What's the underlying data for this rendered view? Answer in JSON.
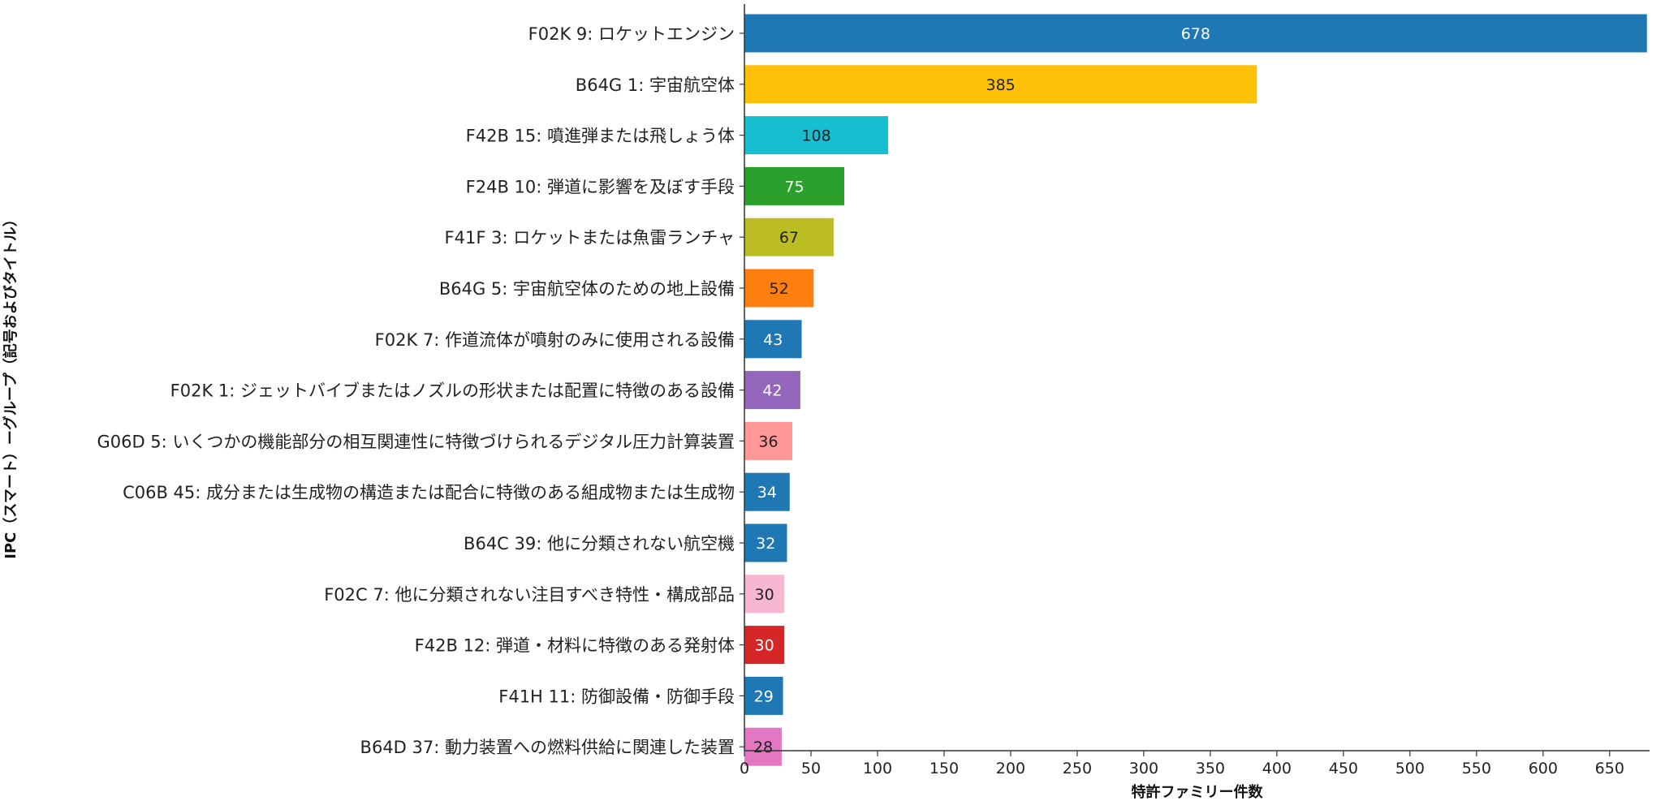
{
  "chart_data": {
    "type": "bar",
    "orientation": "horizontal",
    "xlabel": "特許ファミリー件数",
    "ylabel": "IPC（スマート）ーグループ（記号およびタイトル）",
    "xlim": [
      0,
      680
    ],
    "xticks": [
      0,
      50,
      100,
      150,
      200,
      250,
      300,
      350,
      400,
      450,
      500,
      550,
      600,
      650
    ],
    "categories": [
      "F02K 9: ロケットエンジン",
      "B64G 1: 宇宙航空体",
      "F42B 15: 噴進弾または飛しょう体",
      "F24B 10: 弾道に影響を及ぼす手段",
      "F41F 3: ロケットまたは魚雷ランチャ",
      "B64G 5: 宇宙航空体のための地上設備",
      "F02K 7: 作道流体が噴射のみに使用される設備",
      "F02K 1: ジェットバイブまたはノズルの形状または配置に特徴のある設備",
      "G06D 5: いくつかの機能部分の相互関連性に特徴づけられるデジタル圧力計算装置",
      "C06B 45: 成分または生成物の構造または配合に特徴のある組成物または生成物",
      "B64C 39: 他に分類されない航空機",
      "F02C 7: 他に分類されない注目すべき特性・構成部品",
      "F42B 12: 弾道・材料に特徴のある発射体",
      "F41H 11: 防御設備・防御手段",
      "B64D 37: 動力装置への燃料供給に関連した装置"
    ],
    "values": [
      678,
      385,
      108,
      75,
      67,
      52,
      43,
      42,
      36,
      34,
      32,
      30,
      30,
      29,
      28
    ],
    "colors": [
      "#1f77b4",
      "#ffc107",
      "#17becf",
      "#2ca02c",
      "#bcbd22",
      "#ff7f0e",
      "#1f77b4",
      "#9467bd",
      "#ff9896",
      "#1f77b4",
      "#1f77b4",
      "#f7b6d2",
      "#d62728",
      "#1f77b4",
      "#e377c2"
    ],
    "label_colors": [
      "#ffffff",
      "#222222",
      "#222222",
      "#ffffff",
      "#222222",
      "#222222",
      "#ffffff",
      "#ffffff",
      "#222222",
      "#ffffff",
      "#ffffff",
      "#222222",
      "#ffffff",
      "#ffffff",
      "#222222"
    ],
    "grid": false,
    "legend": "none"
  }
}
